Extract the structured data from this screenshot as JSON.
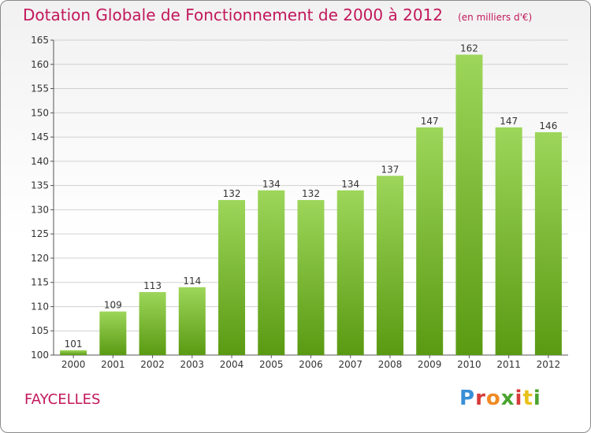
{
  "header": {
    "title": "Dotation Globale de Fonctionnement de 2000 à 2012",
    "unit": "(en milliers d'€)"
  },
  "footer": {
    "commune": "FAYCELLES",
    "logo_text": "Proxiti"
  },
  "colors": {
    "bar_top": "#9dd65a",
    "bar_bottom": "#5a9a12",
    "title": "#c2185b",
    "grid": "#d0d0d0"
  },
  "chart_data": {
    "type": "bar",
    "categories": [
      "2000",
      "2001",
      "2002",
      "2003",
      "2004",
      "2005",
      "2006",
      "2007",
      "2008",
      "2009",
      "2010",
      "2011",
      "2012"
    ],
    "values": [
      101,
      109,
      113,
      114,
      132,
      134,
      132,
      134,
      137,
      147,
      162,
      147,
      146
    ],
    "ylim": [
      100,
      165
    ],
    "yticks": [
      100,
      105,
      110,
      115,
      120,
      125,
      130,
      135,
      140,
      145,
      150,
      155,
      160,
      165
    ],
    "grid": true,
    "data_labels": true
  }
}
